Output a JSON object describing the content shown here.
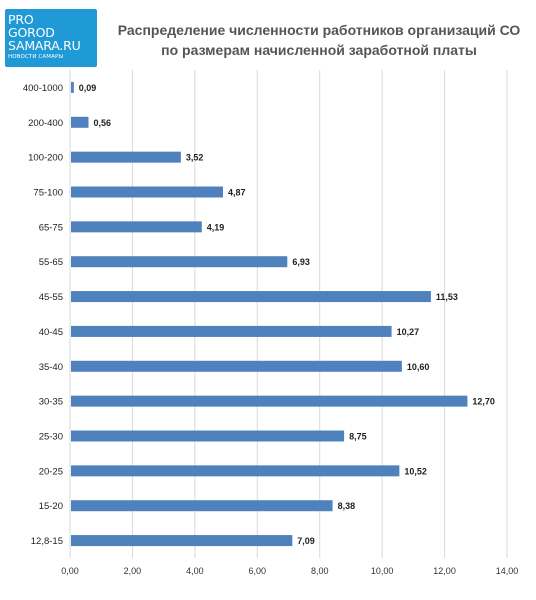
{
  "logo": {
    "line1": "PRO",
    "line2": "GOROD",
    "line3": "SAMARA.RU",
    "tagline": "НОВОСТИ САМАРЫ"
  },
  "chart_data": {
    "type": "bar",
    "orientation": "horizontal",
    "title": "Распределение численности работников организаций СО по размерам начисленной заработной платы",
    "xlabel": "",
    "ylabel": "",
    "categories": [
      "400-1000",
      "200-400",
      "100-200",
      "75-100",
      "65-75",
      "55-65",
      "45-55",
      "40-45",
      "35-40",
      "30-35",
      "25-30",
      "20-25",
      "15-20",
      "12,8-15"
    ],
    "values": [
      0.09,
      0.56,
      3.52,
      4.87,
      4.19,
      6.93,
      11.53,
      10.27,
      10.6,
      12.7,
      8.75,
      10.52,
      8.38,
      7.09
    ],
    "value_labels": [
      "0,09",
      "0,56",
      "3,52",
      "4,87",
      "4,19",
      "6,93",
      "11,53",
      "10,27",
      "10,60",
      "12,70",
      "8,75",
      "10,52",
      "8,38",
      "7,09"
    ],
    "xlim": [
      0,
      14
    ],
    "ticks": [
      0,
      2,
      4,
      6,
      8,
      10,
      12,
      14
    ],
    "tick_labels": [
      "0,00",
      "2,00",
      "4,00",
      "6,00",
      "8,00",
      "10,00",
      "12,00",
      "14,00"
    ],
    "grid": "vertical",
    "legend": "none",
    "bar_color": "#4f81bd",
    "grid_color": "#d9d9d9"
  }
}
